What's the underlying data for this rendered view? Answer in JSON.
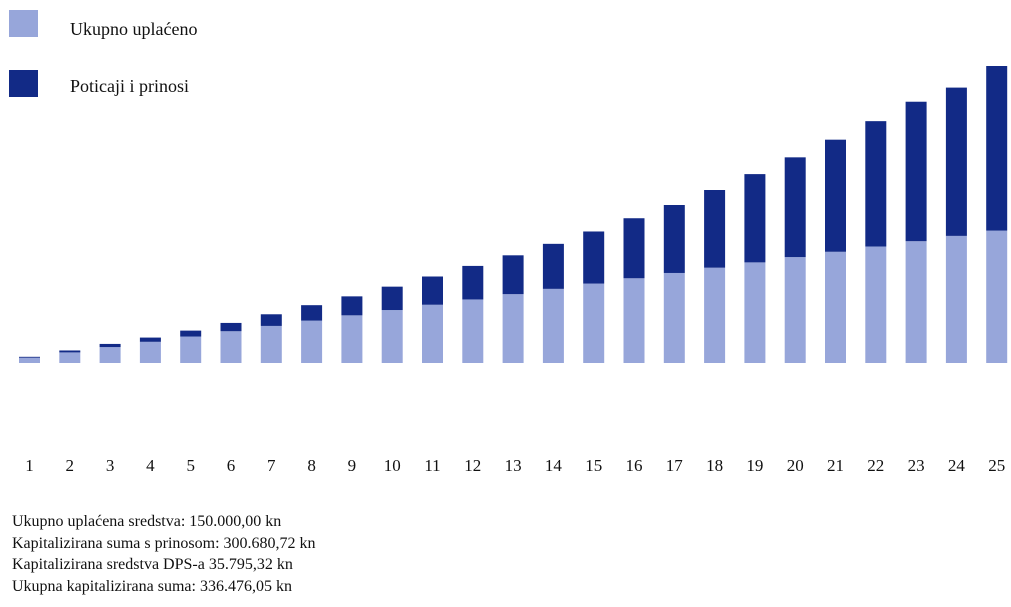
{
  "chart_data": {
    "type": "bar",
    "stacked": true,
    "title": "",
    "xlabel": "",
    "ylabel": "",
    "grid": false,
    "legend_position": "top-left",
    "categories": [
      "1",
      "2",
      "3",
      "4",
      "5",
      "6",
      "7",
      "8",
      "9",
      "10",
      "11",
      "12",
      "13",
      "14",
      "15",
      "16",
      "17",
      "18",
      "19",
      "20",
      "21",
      "22",
      "23",
      "24",
      "25"
    ],
    "series": [
      {
        "name": "Ukupno uplaćeno",
        "color": "#97a6da",
        "values": [
          6000,
          12000,
          18000,
          24000,
          30000,
          36000,
          42000,
          48000,
          54000,
          60000,
          66000,
          72000,
          78000,
          84000,
          90000,
          96000,
          102000,
          108000,
          114000,
          120000,
          126000,
          132000,
          138000,
          144000,
          150000
        ]
      },
      {
        "name": "Poticaji i prinosi",
        "color": "#122a86",
        "values": [
          1000,
          2200,
          3600,
          4800,
          6700,
          9400,
          13200,
          17500,
          21500,
          26500,
          32000,
          38000,
          44000,
          51000,
          59000,
          68000,
          77000,
          88000,
          100000,
          113000,
          127000,
          142000,
          158000,
          168000,
          186476
        ]
      }
    ]
  },
  "summary": {
    "line1": "Ukupno uplaćena sredstva: 150.000,00 kn",
    "line2": "Kapitalizirana suma s prinosom: 300.680,72 kn",
    "line3": "Kapitalizirana sredstva DPS-a 35.795,32 kn",
    "line4": "Ukupna kapitalizirana suma: 336.476,05 kn"
  }
}
